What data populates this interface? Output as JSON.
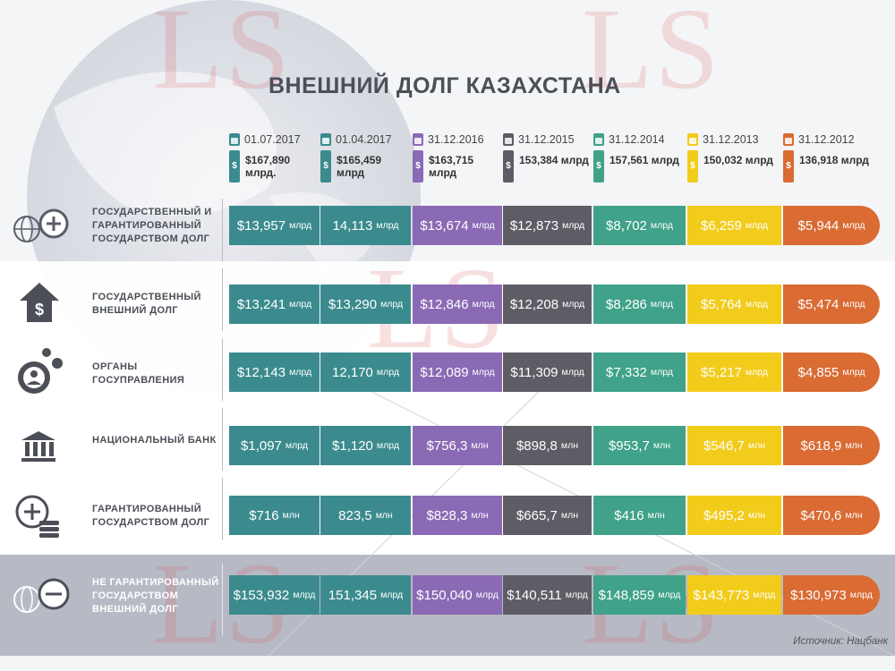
{
  "title": "ВНЕШНИЙ ДОЛГ КАЗАХСТАНА",
  "watermark": "LS",
  "source": "Источник: Нацбанк",
  "colors": [
    "#3b8b8e",
    "#3b8b8e",
    "#8a6ab5",
    "#5e5d66",
    "#3fa289",
    "#f1cc1b",
    "#d96b33"
  ],
  "columns": [
    {
      "date": "01.07.2017",
      "amount": "$167,890 млрд."
    },
    {
      "date": "01.04.2017",
      "amount": "$165,459 млрд"
    },
    {
      "date": "31.12.2016",
      "amount": "$163,715 млрд"
    },
    {
      "date": "31.12.2015",
      "amount": "153,384 млрд"
    },
    {
      "date": "31.12.2014",
      "amount": "157,561 млрд"
    },
    {
      "date": "31.12.2013",
      "amount": "150,032 млрд"
    },
    {
      "date": "31.12.2012",
      "amount": "136,918 млрд"
    }
  ],
  "chart_data": {
    "type": "table",
    "title": "ВНЕШНИЙ ДОЛГ КАЗАХСТАНА",
    "columns": [
      "01.07.2017",
      "01.04.2017",
      "31.12.2016",
      "31.12.2015",
      "31.12.2014",
      "31.12.2013",
      "31.12.2012"
    ],
    "totals": [
      "$167,890 млрд.",
      "$165,459 млрд",
      "$163,715 млрд",
      "153,384 млрд",
      "157,561 млрд",
      "150,032 млрд",
      "136,918 млрд"
    ],
    "rows": [
      {
        "label": "ГОСУДАРСТВЕННЫЙ И ГАРАНТИРОВАННЫЙ ГОСУДАРСТВОМ ДОЛГ",
        "icon": "globe-plus-icon",
        "cells": [
          {
            "v": "$13,957",
            "u": "млрд"
          },
          {
            "v": "14,113",
            "u": "млрд"
          },
          {
            "v": "$13,674",
            "u": "млрд"
          },
          {
            "v": "$12,873",
            "u": "млрд"
          },
          {
            "v": "$8,702",
            "u": "млрд"
          },
          {
            "v": "$6,259",
            "u": "млрд"
          },
          {
            "v": "$5,944",
            "u": "млрд"
          }
        ]
      },
      {
        "label": "ГОСУДАРСТВЕННЫЙ ВНЕШНИЙ ДОЛГ",
        "icon": "house-dollar-icon",
        "cells": [
          {
            "v": "$13,241",
            "u": "млрд"
          },
          {
            "v": "$13,290",
            "u": "млрд"
          },
          {
            "v": "$12,846",
            "u": "млрд"
          },
          {
            "v": "$12,208",
            "u": "млрд"
          },
          {
            "v": "$8,286",
            "u": "млрд"
          },
          {
            "v": "$5,764",
            "u": "млрд"
          },
          {
            "v": "$5,474",
            "u": "млрд"
          }
        ]
      },
      {
        "label": "ОРГАНЫ ГОСУПРАВЛЕНИЯ",
        "icon": "gear-person-icon",
        "cells": [
          {
            "v": "$12,143",
            "u": "млрд"
          },
          {
            "v": "12,170",
            "u": "млрд"
          },
          {
            "v": "$12,089",
            "u": "млрд"
          },
          {
            "v": "$11,309",
            "u": "млрд"
          },
          {
            "v": "$7,332",
            "u": "млрд"
          },
          {
            "v": "$5,217",
            "u": "млрд"
          },
          {
            "v": "$4,855",
            "u": "млрд"
          }
        ]
      },
      {
        "label": "НАЦИОНАЛЬНЫЙ БАНК",
        "icon": "bank-icon",
        "cells": [
          {
            "v": "$1,097",
            "u": "млрд"
          },
          {
            "v": "$1,120",
            "u": "млрд"
          },
          {
            "v": "$756,3",
            "u": "млн"
          },
          {
            "v": "$898,8",
            "u": "млн"
          },
          {
            "v": "$953,7",
            "u": "млн"
          },
          {
            "v": "$546,7",
            "u": "млн"
          },
          {
            "v": "$618,9",
            "u": "млн"
          }
        ]
      },
      {
        "label": "ГАРАНТИРОВАННЫЙ ГОСУДАРСТВОМ ДОЛГ",
        "icon": "plus-coins-icon",
        "cells": [
          {
            "v": "$716",
            "u": "млн"
          },
          {
            "v": "823,5",
            "u": "млн"
          },
          {
            "v": "$828,3",
            "u": "млн"
          },
          {
            "v": "$665,7",
            "u": "млн"
          },
          {
            "v": "$416",
            "u": "млн"
          },
          {
            "v": "$495,2",
            "u": "млн"
          },
          {
            "v": "$470,6",
            "u": "млн"
          }
        ]
      },
      {
        "label": "НЕ ГАРАНТИРОВАННЫЙ ГОСУДАРСТВОМ ВНЕШНИЙ ДОЛГ",
        "icon": "globe-minus-icon",
        "cells": [
          {
            "v": "$153,932",
            "u": "млрд"
          },
          {
            "v": "151,345",
            "u": "млрд"
          },
          {
            "v": "$150,040",
            "u": "млрд"
          },
          {
            "v": "$140,511",
            "u": "млрд"
          },
          {
            "v": "$148,859",
            "u": "млрд"
          },
          {
            "v": "$143,773",
            "u": "млрд"
          },
          {
            "v": "$130,973",
            "u": "млрд"
          }
        ]
      }
    ]
  }
}
